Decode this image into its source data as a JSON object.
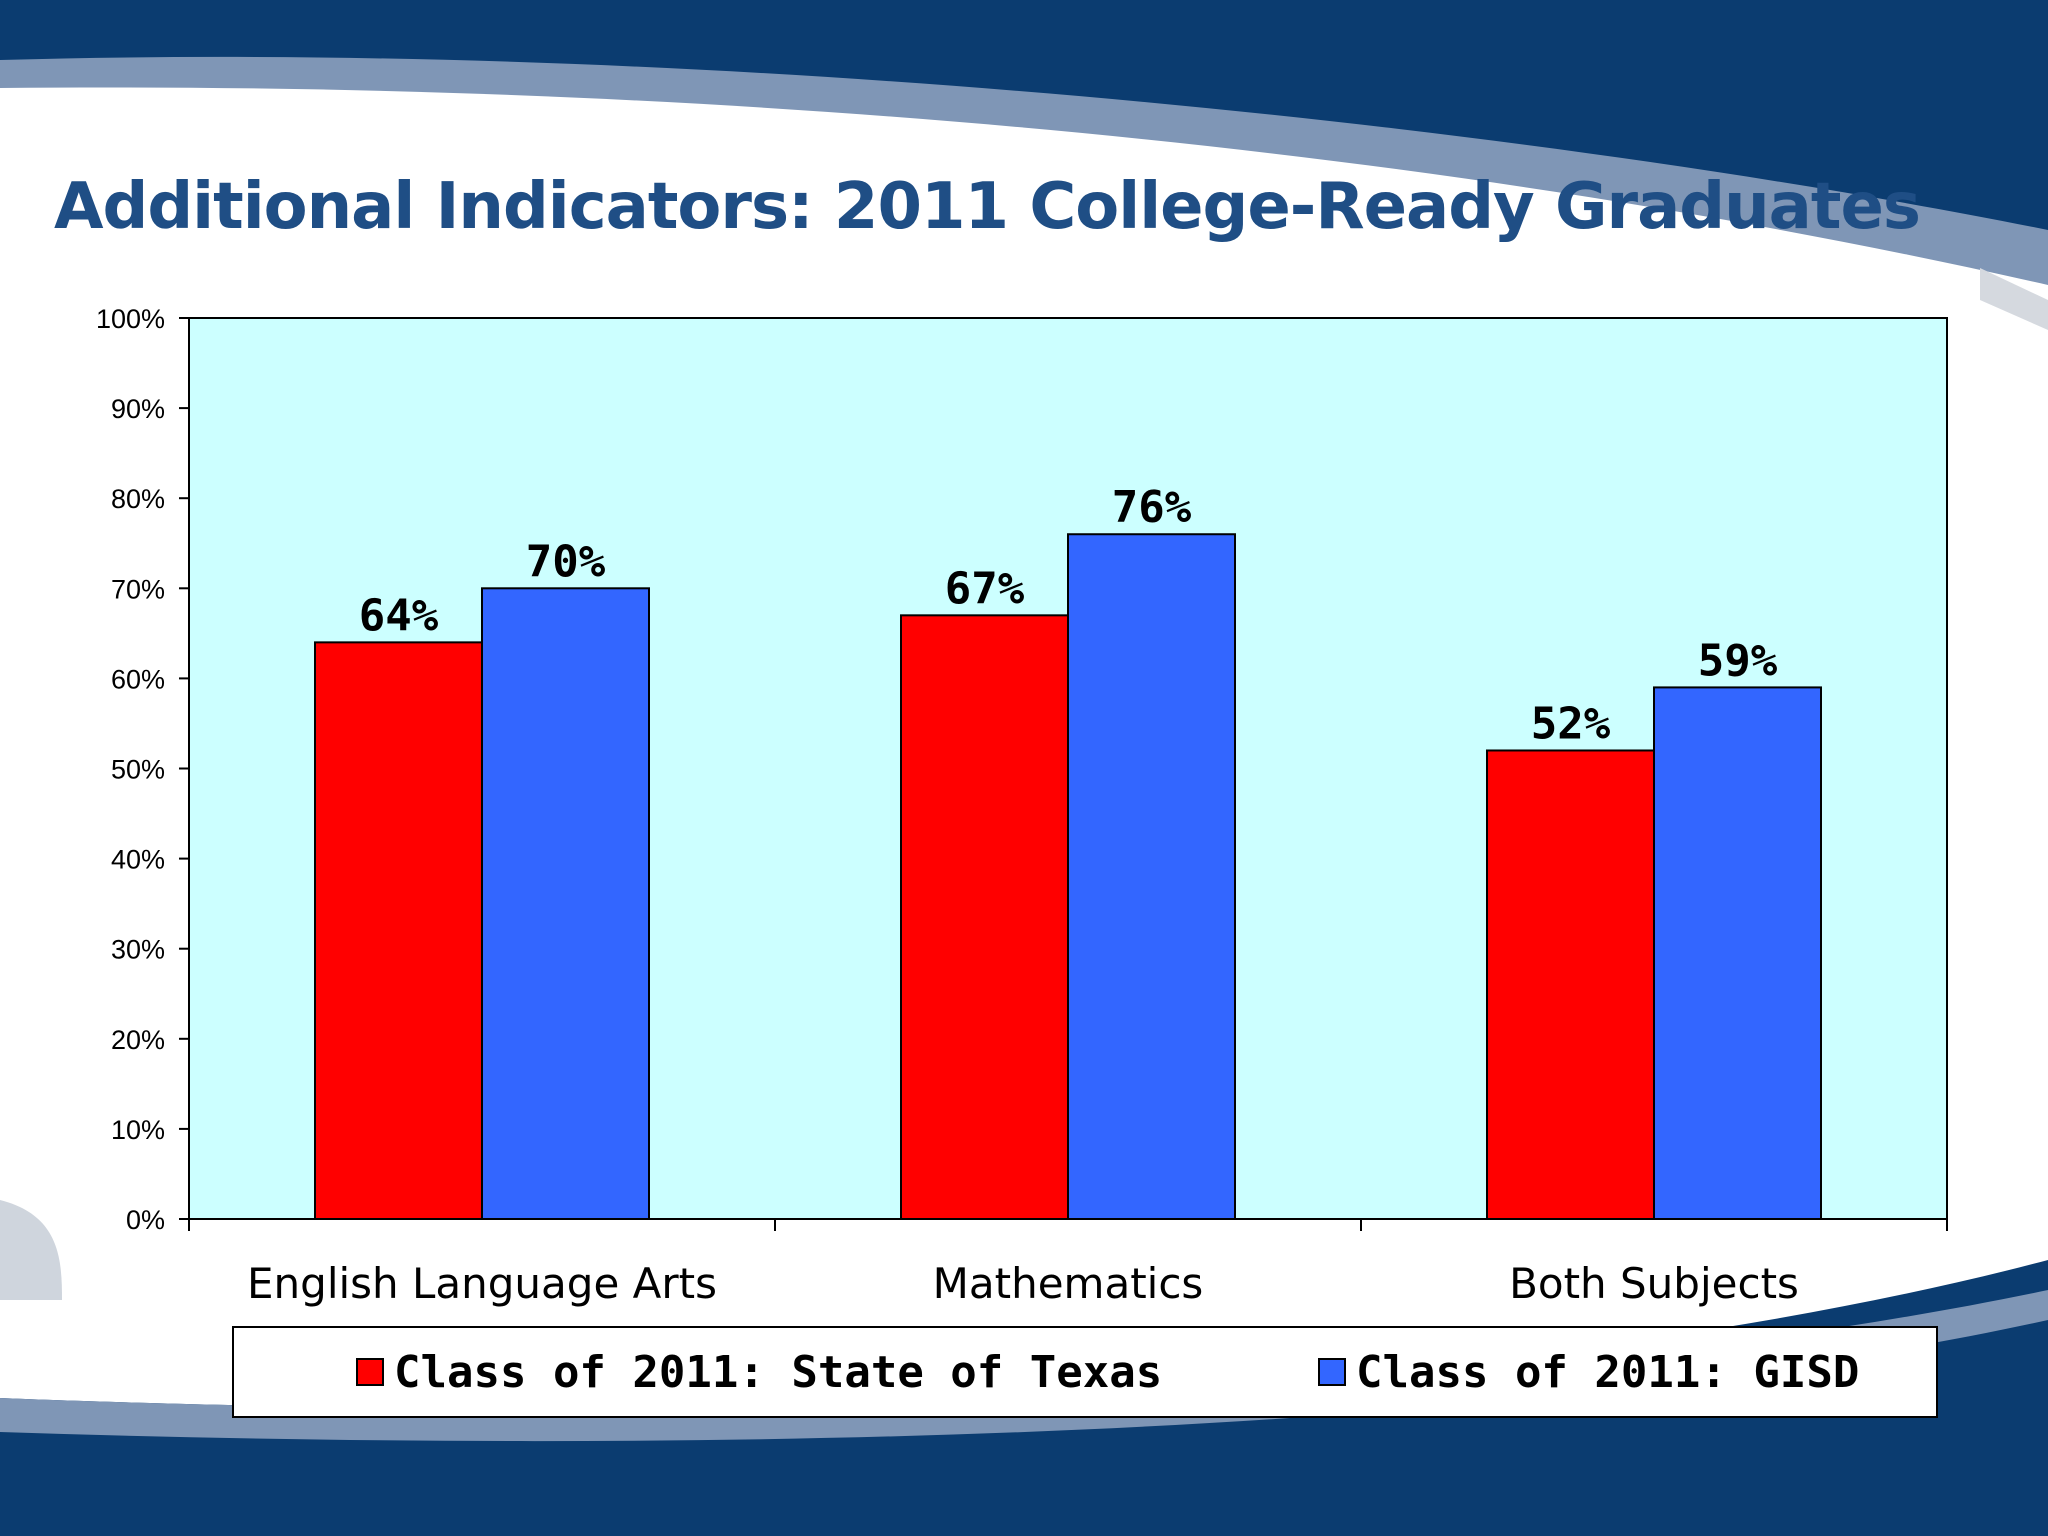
{
  "slide": {
    "title": "Additional Indicators: 2011 College-Ready Graduates"
  },
  "colors": {
    "banner_dark": "#0b3c70",
    "banner_light": "#7f96b6",
    "title": "#1f4e85",
    "plot_background": "#ccffff",
    "state_series": "#ff0000",
    "gisd_series": "#3366ff"
  },
  "chart_data": {
    "type": "bar",
    "title": "",
    "xlabel": "",
    "ylabel": "",
    "categories": [
      "English Language Arts",
      "Mathematics",
      "Both Subjects"
    ],
    "series": [
      {
        "name": "Class of 2011: State of Texas",
        "values": [
          64,
          67,
          52
        ],
        "color": "#ff0000"
      },
      {
        "name": "Class of 2011: GISD",
        "values": [
          70,
          76,
          59
        ],
        "color": "#3366ff"
      }
    ],
    "data_labels": [
      [
        "64%",
        "67%",
        "52%"
      ],
      [
        "70%",
        "76%",
        "59%"
      ]
    ],
    "ylim": [
      0,
      100
    ],
    "y_ticks": [
      "0%",
      "10%",
      "20%",
      "30%",
      "40%",
      "50%",
      "60%",
      "70%",
      "80%",
      "90%",
      "100%"
    ],
    "grid": false,
    "legend_position": "bottom"
  }
}
